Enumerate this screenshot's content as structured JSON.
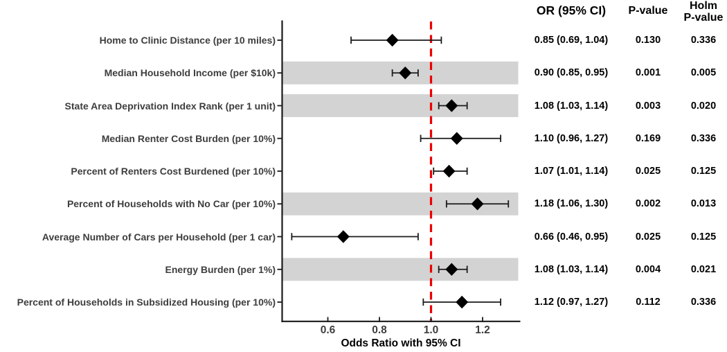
{
  "columns": {
    "or_header": "OR (95% CI)",
    "p_header": "P-value",
    "holm_header_line1": "Holm",
    "holm_header_line2": "P-value"
  },
  "chart_data": {
    "type": "scatter",
    "variant": "forest-plot",
    "xlabel": "Odds Ratio with 95% CI",
    "x_ticks": [
      0.6,
      0.8,
      1.0,
      1.2
    ],
    "x_tick_labels": [
      "0.6",
      "0.8",
      "1.0",
      "1.2"
    ],
    "xlim": [
      0.42,
      1.34
    ],
    "reference_line": 1.0,
    "grid": false,
    "legend": "none",
    "rows": [
      {
        "label": "Home to Clinic Distance (per 10 miles)",
        "estimate": 0.85,
        "ci_low": 0.69,
        "ci_high": 1.04,
        "or_ci": "0.85 (0.69, 1.04)",
        "p_value": "0.130",
        "holm_p_value": "0.336",
        "shaded": false
      },
      {
        "label": "Median Household Income (per $10k)",
        "estimate": 0.9,
        "ci_low": 0.85,
        "ci_high": 0.95,
        "or_ci": "0.90 (0.85, 0.95)",
        "p_value": "0.001",
        "holm_p_value": "0.005",
        "shaded": true
      },
      {
        "label": "State Area Deprivation Index Rank (per 1 unit)",
        "estimate": 1.08,
        "ci_low": 1.03,
        "ci_high": 1.14,
        "or_ci": "1.08 (1.03, 1.14)",
        "p_value": "0.003",
        "holm_p_value": "0.020",
        "shaded": true
      },
      {
        "label": "Median Renter Cost Burden (per 10%)",
        "estimate": 1.1,
        "ci_low": 0.96,
        "ci_high": 1.27,
        "or_ci": "1.10 (0.96, 1.27)",
        "p_value": "0.169",
        "holm_p_value": "0.336",
        "shaded": false
      },
      {
        "label": "Percent of Renters Cost Burdened (per 10%)",
        "estimate": 1.07,
        "ci_low": 1.01,
        "ci_high": 1.14,
        "or_ci": "1.07 (1.01, 1.14)",
        "p_value": "0.025",
        "holm_p_value": "0.125",
        "shaded": false
      },
      {
        "label": "Percent of Households with No Car (per 10%)",
        "estimate": 1.18,
        "ci_low": 1.06,
        "ci_high": 1.3,
        "or_ci": "1.18 (1.06, 1.30)",
        "p_value": "0.002",
        "holm_p_value": "0.013",
        "shaded": true
      },
      {
        "label": "Average Number of Cars per Household (per 1 car)",
        "estimate": 0.66,
        "ci_low": 0.46,
        "ci_high": 0.95,
        "or_ci": "0.66 (0.46, 0.95)",
        "p_value": "0.025",
        "holm_p_value": "0.125",
        "shaded": false
      },
      {
        "label": "Energy Burden (per 1%)",
        "estimate": 1.08,
        "ci_low": 1.03,
        "ci_high": 1.14,
        "or_ci": "1.08 (1.03, 1.14)",
        "p_value": "0.004",
        "holm_p_value": "0.021",
        "shaded": true
      },
      {
        "label": "Percent of Households in Subsidized Housing (per 10%)",
        "estimate": 1.12,
        "ci_low": 0.97,
        "ci_high": 1.27,
        "or_ci": "1.12 (0.97, 1.27)",
        "p_value": "0.112",
        "holm_p_value": "0.336",
        "shaded": false
      }
    ]
  },
  "colors": {
    "band": "#d3d3d3",
    "reference_line": "#ee0000",
    "marker": "#000000",
    "axis": "#1a1a1a",
    "whisker": "#1a1a1a",
    "label_text": "#3d3d3d",
    "value_text": "#000000"
  }
}
